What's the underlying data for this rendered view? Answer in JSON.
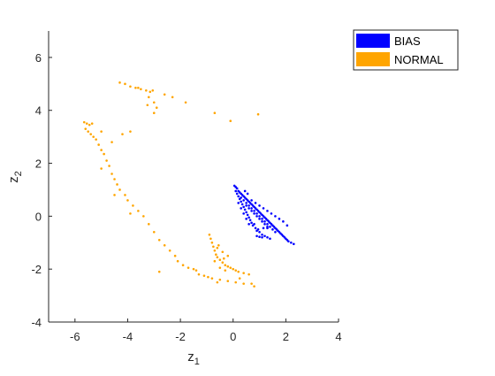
{
  "chart_data": {
    "type": "scatter",
    "xlim": [
      -7,
      4
    ],
    "ylim": [
      -4,
      7
    ],
    "x_ticks": [
      -6,
      -4,
      -2,
      0,
      2,
      4
    ],
    "y_ticks": [
      -4,
      -2,
      0,
      2,
      4,
      6
    ],
    "x_tick_labels": [
      "-6",
      "-4",
      "-2",
      "0",
      "2",
      "4"
    ],
    "y_tick_labels": [
      "-4",
      "-2",
      "0",
      "2",
      "4",
      "6"
    ],
    "xlabel": "z",
    "xlabel_sub": "1",
    "ylabel": "z",
    "ylabel_sub": "2",
    "grid": false,
    "legend_position": "outside-top-right",
    "series": [
      {
        "name": "BIAS",
        "color": "#0000ff",
        "points": [
          [
            0.05,
            1.15
          ],
          [
            0.1,
            1.1
          ],
          [
            0.15,
            1.05
          ],
          [
            0.1,
            0.95
          ],
          [
            0.2,
            0.95
          ],
          [
            0.25,
            0.9
          ],
          [
            0.15,
            0.85
          ],
          [
            0.3,
            0.85
          ],
          [
            0.2,
            0.75
          ],
          [
            0.35,
            0.8
          ],
          [
            0.4,
            0.75
          ],
          [
            0.25,
            0.65
          ],
          [
            0.45,
            0.7
          ],
          [
            0.5,
            0.65
          ],
          [
            0.3,
            0.55
          ],
          [
            0.55,
            0.6
          ],
          [
            0.6,
            0.55
          ],
          [
            0.35,
            0.45
          ],
          [
            0.65,
            0.5
          ],
          [
            0.7,
            0.45
          ],
          [
            0.4,
            0.35
          ],
          [
            0.75,
            0.4
          ],
          [
            0.8,
            0.35
          ],
          [
            0.45,
            0.25
          ],
          [
            0.85,
            0.3
          ],
          [
            0.9,
            0.25
          ],
          [
            0.5,
            0.15
          ],
          [
            0.95,
            0.2
          ],
          [
            1.0,
            0.15
          ],
          [
            0.55,
            0.05
          ],
          [
            1.05,
            0.1
          ],
          [
            1.1,
            0.05
          ],
          [
            0.6,
            -0.05
          ],
          [
            1.15,
            0.0
          ],
          [
            1.2,
            -0.05
          ],
          [
            0.65,
            -0.15
          ],
          [
            1.25,
            -0.1
          ],
          [
            1.3,
            -0.15
          ],
          [
            0.7,
            -0.25
          ],
          [
            1.35,
            -0.2
          ],
          [
            1.4,
            -0.25
          ],
          [
            0.75,
            -0.35
          ],
          [
            1.45,
            -0.3
          ],
          [
            1.5,
            -0.35
          ],
          [
            0.85,
            -0.45
          ],
          [
            1.55,
            -0.4
          ],
          [
            1.6,
            -0.45
          ],
          [
            0.9,
            -0.55
          ],
          [
            1.65,
            -0.5
          ],
          [
            1.7,
            -0.55
          ],
          [
            1.0,
            -0.6
          ],
          [
            1.75,
            -0.6
          ],
          [
            1.8,
            -0.65
          ],
          [
            1.1,
            -0.7
          ],
          [
            1.85,
            -0.7
          ],
          [
            1.9,
            -0.75
          ],
          [
            1.2,
            -0.75
          ],
          [
            1.95,
            -0.8
          ],
          [
            2.0,
            -0.85
          ],
          [
            1.3,
            -0.8
          ],
          [
            2.05,
            -0.9
          ],
          [
            2.1,
            -0.95
          ],
          [
            1.4,
            -0.85
          ],
          [
            2.2,
            -1.0
          ],
          [
            2.3,
            -1.05
          ],
          [
            0.9,
            -0.75
          ],
          [
            1.0,
            -0.78
          ],
          [
            1.1,
            -0.8
          ],
          [
            0.95,
            -0.5
          ],
          [
            1.15,
            -0.45
          ],
          [
            1.3,
            -0.4
          ],
          [
            0.5,
            0.4
          ],
          [
            0.6,
            0.3
          ],
          [
            0.7,
            0.2
          ],
          [
            0.8,
            0.1
          ],
          [
            0.9,
            0.0
          ],
          [
            1.0,
            -0.1
          ],
          [
            1.1,
            -0.2
          ],
          [
            1.2,
            -0.3
          ],
          [
            1.3,
            -0.45
          ],
          [
            0.3,
            0.7
          ],
          [
            0.4,
            0.6
          ],
          [
            0.5,
            0.5
          ],
          [
            0.6,
            0.4
          ],
          [
            0.7,
            0.3
          ],
          [
            0.8,
            0.2
          ],
          [
            0.9,
            0.1
          ],
          [
            1.0,
            0.0
          ],
          [
            1.1,
            -0.1
          ],
          [
            1.2,
            -0.2
          ],
          [
            1.3,
            -0.3
          ],
          [
            1.4,
            -0.4
          ],
          [
            1.5,
            -0.5
          ],
          [
            1.6,
            -0.6
          ],
          [
            0.2,
            0.5
          ],
          [
            0.3,
            0.3
          ],
          [
            0.4,
            0.1
          ],
          [
            0.5,
            -0.1
          ],
          [
            0.6,
            -0.3
          ],
          [
            0.8,
            -0.3
          ],
          [
            0.7,
            0.6
          ],
          [
            0.85,
            0.5
          ],
          [
            1.0,
            0.4
          ],
          [
            1.15,
            0.3
          ],
          [
            1.3,
            0.2
          ],
          [
            1.45,
            0.1
          ],
          [
            1.6,
            0.0
          ],
          [
            1.75,
            -0.1
          ],
          [
            1.9,
            -0.2
          ],
          [
            2.05,
            -0.35
          ],
          [
            0.55,
            0.85
          ],
          [
            0.45,
            0.95
          ]
        ]
      },
      {
        "name": "NORMAL",
        "color": "#ffa500",
        "points": [
          [
            -4.3,
            5.05
          ],
          [
            -4.1,
            5.0
          ],
          [
            -3.9,
            4.9
          ],
          [
            -3.7,
            4.85
          ],
          [
            -3.5,
            4.8
          ],
          [
            -3.3,
            4.75
          ],
          [
            -3.15,
            4.7
          ],
          [
            -3.05,
            4.75
          ],
          [
            -3.6,
            4.85
          ],
          [
            -3.2,
            4.5
          ],
          [
            -3.0,
            4.3
          ],
          [
            -3.25,
            4.2
          ],
          [
            -2.9,
            4.1
          ],
          [
            -3.0,
            3.9
          ],
          [
            -2.6,
            4.6
          ],
          [
            -2.3,
            4.5
          ],
          [
            -1.8,
            4.3
          ],
          [
            -0.7,
            3.9
          ],
          [
            -0.1,
            3.6
          ],
          [
            0.95,
            3.85
          ],
          [
            -5.65,
            3.55
          ],
          [
            -5.55,
            3.5
          ],
          [
            -5.45,
            3.45
          ],
          [
            -5.35,
            3.5
          ],
          [
            -5.6,
            3.3
          ],
          [
            -5.5,
            3.2
          ],
          [
            -5.4,
            3.1
          ],
          [
            -5.3,
            3.0
          ],
          [
            -5.2,
            2.9
          ],
          [
            -5.1,
            2.7
          ],
          [
            -5.0,
            2.5
          ],
          [
            -4.9,
            2.35
          ],
          [
            -4.8,
            2.1
          ],
          [
            -4.7,
            1.9
          ],
          [
            -4.6,
            1.6
          ],
          [
            -4.5,
            1.4
          ],
          [
            -4.4,
            1.2
          ],
          [
            -4.3,
            1.0
          ],
          [
            -4.1,
            0.8
          ],
          [
            -4.0,
            0.6
          ],
          [
            -3.8,
            0.4
          ],
          [
            -3.6,
            0.2
          ],
          [
            -3.4,
            0.0
          ],
          [
            -3.2,
            -0.3
          ],
          [
            -3.0,
            -0.6
          ],
          [
            -2.8,
            -0.9
          ],
          [
            -2.6,
            -1.1
          ],
          [
            -2.4,
            -1.3
          ],
          [
            -2.2,
            -1.5
          ],
          [
            -2.1,
            -1.7
          ],
          [
            -1.9,
            -1.85
          ],
          [
            -1.7,
            -1.95
          ],
          [
            -1.5,
            -2.0
          ],
          [
            -1.4,
            -2.05
          ],
          [
            -4.2,
            3.1
          ],
          [
            -4.6,
            2.8
          ],
          [
            -5.0,
            3.2
          ],
          [
            -3.9,
            3.2
          ],
          [
            -4.5,
            0.8
          ],
          [
            -3.9,
            0.1
          ],
          [
            -2.8,
            -2.1
          ],
          [
            -1.3,
            -2.2
          ],
          [
            -0.6,
            -2.5
          ],
          [
            -5.0,
            1.8
          ],
          [
            -0.9,
            -0.7
          ],
          [
            -0.85,
            -0.85
          ],
          [
            -0.8,
            -1.0
          ],
          [
            -0.75,
            -1.15
          ],
          [
            -0.7,
            -1.3
          ],
          [
            -0.65,
            -1.45
          ],
          [
            -0.6,
            -1.55
          ],
          [
            -0.5,
            -1.65
          ],
          [
            -0.4,
            -1.75
          ],
          [
            -0.3,
            -1.85
          ],
          [
            -0.2,
            -1.9
          ],
          [
            -0.1,
            -1.95
          ],
          [
            0.0,
            -2.0
          ],
          [
            0.1,
            -2.05
          ],
          [
            -0.7,
            -1.7
          ],
          [
            -0.5,
            -1.95
          ],
          [
            -0.3,
            -2.05
          ],
          [
            -0.6,
            -1.2
          ],
          [
            -0.4,
            -1.35
          ],
          [
            -0.2,
            -1.5
          ],
          [
            0.2,
            -2.1
          ],
          [
            0.4,
            -2.15
          ],
          [
            0.6,
            -2.2
          ],
          [
            -0.8,
            -2.35
          ],
          [
            -0.5,
            -2.4
          ],
          [
            -0.2,
            -2.45
          ],
          [
            0.1,
            -2.5
          ],
          [
            0.4,
            -2.55
          ],
          [
            0.7,
            -2.55
          ],
          [
            0.8,
            -2.65
          ],
          [
            -0.55,
            -1.1
          ],
          [
            -0.35,
            -1.6
          ],
          [
            0.25,
            -2.35
          ],
          [
            -0.95,
            -2.3
          ],
          [
            -1.1,
            -2.25
          ]
        ]
      }
    ]
  },
  "legend": {
    "items": [
      {
        "label": "BIAS",
        "color": "#0000ff"
      },
      {
        "label": "NORMAL",
        "color": "#ffa500"
      }
    ]
  }
}
